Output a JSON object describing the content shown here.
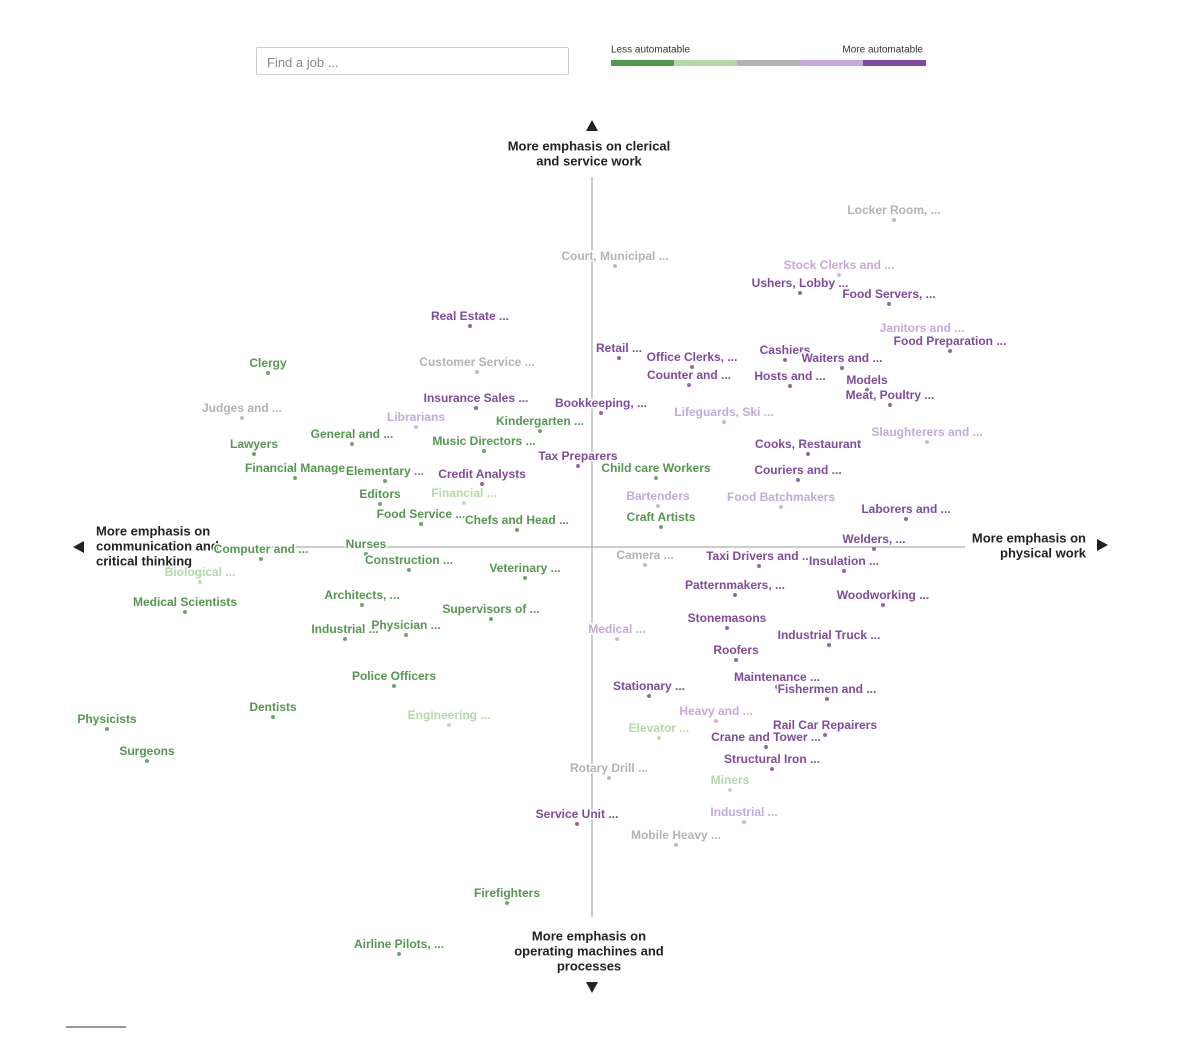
{
  "search_placeholder": "Find a job ...",
  "chart_data": {
    "type": "scatter",
    "legend": {
      "low": "Less automatable",
      "high": "More automatable"
    },
    "colors": [
      "#54974f",
      "#b2d9a6",
      "#b3b3b3",
      "#c5a8dc",
      "#7f4a9e"
    ],
    "axes": {
      "top": [
        "More emphasis on clerical",
        "and service work"
      ],
      "bottom": [
        "More emphasis on",
        "operating machines and",
        "processes"
      ],
      "left": [
        "More emphasis on",
        "communication and",
        "critical thinking"
      ],
      "right": [
        "More emphasis on",
        "physical work"
      ]
    },
    "xlim": [
      -520,
      520
    ],
    "ylim": [
      -420,
      420
    ],
    "points": [
      {
        "label": "Locker Room, ...",
        "x": 302,
        "y": 327,
        "level": 2
      },
      {
        "label": "Court, Municipal ...",
        "x": 23,
        "y": 281,
        "level": 2
      },
      {
        "label": "Stock Clerks and ...",
        "x": 247,
        "y": 272,
        "level": 3
      },
      {
        "label": "Ushers, Lobby ...",
        "x": 208,
        "y": 254,
        "level": 4
      },
      {
        "label": "Food Servers, ...",
        "x": 297,
        "y": 243,
        "level": 4
      },
      {
        "label": "Real Estate ...",
        "x": -122,
        "y": 221,
        "level": 4
      },
      {
        "label": "Janitors and ...",
        "x": 330,
        "y": 209,
        "level": 3
      },
      {
        "label": "Food Preparation ...",
        "x": 358,
        "y": 196,
        "level": 4
      },
      {
        "label": "Retail ...",
        "x": 27,
        "y": 189,
        "level": 4
      },
      {
        "label": "Office Clerks, ...",
        "x": 100,
        "y": 180,
        "level": 4
      },
      {
        "label": "Cashiers",
        "x": 193,
        "y": 187,
        "level": 4
      },
      {
        "label": "Waiters and ...",
        "x": 250,
        "y": 179,
        "level": 4
      },
      {
        "label": "Clergy",
        "x": -324,
        "y": 174,
        "level": 0
      },
      {
        "label": "Customer Service ...",
        "x": -115,
        "y": 175,
        "level": 2
      },
      {
        "label": "Counter and ...",
        "x": 97,
        "y": 162,
        "level": 4
      },
      {
        "label": "Hosts and ...",
        "x": 198,
        "y": 161,
        "level": 4
      },
      {
        "label": "Models",
        "x": 275,
        "y": 157,
        "level": 4
      },
      {
        "label": "Meat, Poultry ...",
        "x": 298,
        "y": 142,
        "level": 4
      },
      {
        "label": "Insurance Sales ...",
        "x": -116,
        "y": 139,
        "level": 4
      },
      {
        "label": "Bookkeeping, ...",
        "x": 9,
        "y": 134,
        "level": 4
      },
      {
        "label": "Judges and ...",
        "x": -350,
        "y": 129,
        "level": 2
      },
      {
        "label": "Lifeguards, Ski ...",
        "x": 132,
        "y": 125,
        "level": 3
      },
      {
        "label": "Librarians",
        "x": -176,
        "y": 120,
        "level": 3
      },
      {
        "label": "Kindergarten ...",
        "x": -52,
        "y": 116,
        "level": 0
      },
      {
        "label": "General and ...",
        "x": -240,
        "y": 103,
        "level": 0
      },
      {
        "label": "Slaughterers and ...",
        "x": 335,
        "y": 105,
        "level": 3
      },
      {
        "label": "Music Directors ...",
        "x": -108,
        "y": 96,
        "level": 0
      },
      {
        "label": "Lawyers",
        "x": -338,
        "y": 93,
        "level": 0
      },
      {
        "label": "Cooks, Restaurant",
        "x": 216,
        "y": 93,
        "level": 4
      },
      {
        "label": "Tax Preparers",
        "x": -14,
        "y": 81,
        "level": 4
      },
      {
        "label": "Financial Manage",
        "x": -297,
        "y": 69,
        "level": 0
      },
      {
        "label": "Elementary ...",
        "x": -207,
        "y": 66,
        "level": 0
      },
      {
        "label": "Child care Workers",
        "x": 64,
        "y": 69,
        "level": 0
      },
      {
        "label": "Couriers and ...",
        "x": 206,
        "y": 67,
        "level": 4
      },
      {
        "label": "Credit Analysts",
        "x": -110,
        "y": 63,
        "level": 4
      },
      {
        "label": "Editors",
        "x": -212,
        "y": 43,
        "level": 0
      },
      {
        "label": "Financial ...",
        "x": -128,
        "y": 44,
        "level": 1
      },
      {
        "label": "Bartenders",
        "x": 66,
        "y": 41,
        "level": 3
      },
      {
        "label": "Food Batchmakers",
        "x": 189,
        "y": 40,
        "level": 3
      },
      {
        "label": "Laborers and ...",
        "x": 314,
        "y": 28,
        "level": 4
      },
      {
        "label": "Food Service ...",
        "x": -171,
        "y": 23,
        "level": 0
      },
      {
        "label": "Chefs and Head ...",
        "x": -75,
        "y": 17,
        "level": 0
      },
      {
        "label": "Craft Artists",
        "x": 69,
        "y": 20,
        "level": 0
      },
      {
        "label": "Welders, ...",
        "x": 282,
        "y": -2,
        "level": 4
      },
      {
        "label": "Computer and ...",
        "x": -331,
        "y": -12,
        "level": 0
      },
      {
        "label": "Nurses",
        "x": -226,
        "y": -7,
        "level": 0
      },
      {
        "label": "Camera ...",
        "x": 53,
        "y": -18,
        "level": 2
      },
      {
        "label": "Taxi Drivers and ...",
        "x": 167,
        "y": -19,
        "level": 4
      },
      {
        "label": "Insulation ...",
        "x": 252,
        "y": -24,
        "level": 4
      },
      {
        "label": "Construction ...",
        "x": -183,
        "y": -23,
        "level": 0
      },
      {
        "label": "Veterinary ...",
        "x": -67,
        "y": -31,
        "level": 0
      },
      {
        "label": "Biological ...",
        "x": -392,
        "y": -35,
        "level": 1
      },
      {
        "label": "Patternmakers, ...",
        "x": 143,
        "y": -48,
        "level": 4
      },
      {
        "label": "Architects, ...",
        "x": -230,
        "y": -58,
        "level": 0
      },
      {
        "label": "Woodworking ...",
        "x": 291,
        "y": -58,
        "level": 4
      },
      {
        "label": "Medical Scientists",
        "x": -407,
        "y": -65,
        "level": 0
      },
      {
        "label": "Supervisors of ...",
        "x": -101,
        "y": -72,
        "level": 0
      },
      {
        "label": "Stonemasons",
        "x": 135,
        "y": -81,
        "level": 4
      },
      {
        "label": "Industrial ...",
        "x": -247,
        "y": -92,
        "level": 0
      },
      {
        "label": "Physician ...",
        "x": -186,
        "y": -88,
        "level": 0
      },
      {
        "label": "Medical ...",
        "x": 25,
        "y": -92,
        "level": 3
      },
      {
        "label": "Industrial Truck ...",
        "x": 237,
        "y": -98,
        "level": 4
      },
      {
        "label": "Roofers",
        "x": 144,
        "y": -113,
        "level": 4
      },
      {
        "label": "Police Officers",
        "x": -198,
        "y": -139,
        "level": 0
      },
      {
        "label": "Maintenance ...",
        "x": 185,
        "y": -140,
        "level": 4
      },
      {
        "label": "Stationary ...",
        "x": 57,
        "y": -149,
        "level": 4
      },
      {
        "label": "Fishermen and ...",
        "x": 235,
        "y": -152,
        "level": 4
      },
      {
        "label": "Dentists",
        "x": -319,
        "y": -170,
        "level": 0
      },
      {
        "label": "Heavy and ...",
        "x": 124,
        "y": -174,
        "level": 3
      },
      {
        "label": "Engineering ...",
        "x": -143,
        "y": -178,
        "level": 1
      },
      {
        "label": "Physicists",
        "x": -485,
        "y": -182,
        "level": 0
      },
      {
        "label": "Rail Car Repairers",
        "x": 233,
        "y": -188,
        "level": 4
      },
      {
        "label": "Elevator ...",
        "x": 67,
        "y": -191,
        "level": 1
      },
      {
        "label": "Crane and Tower ...",
        "x": 174,
        "y": -200,
        "level": 4
      },
      {
        "label": "Surgeons",
        "x": -445,
        "y": -214,
        "level": 0
      },
      {
        "label": "Structural Iron ...",
        "x": 180,
        "y": -222,
        "level": 4
      },
      {
        "label": "Rotary Drill ...",
        "x": 17,
        "y": -231,
        "level": 2
      },
      {
        "label": "Miners",
        "x": 138,
        "y": -243,
        "level": 1
      },
      {
        "label": "Service Unit ...",
        "x": -15,
        "y": -277,
        "level": 4
      },
      {
        "label": "Industrial ...",
        "x": 152,
        "y": -275,
        "level": 3
      },
      {
        "label": "Mobile Heavy ...",
        "x": 84,
        "y": -298,
        "level": 2
      },
      {
        "label": "Firefighters",
        "x": -85,
        "y": -356,
        "level": 0
      },
      {
        "label": "Airline Pilots, ...",
        "x": -193,
        "y": -407,
        "level": 0
      }
    ]
  }
}
